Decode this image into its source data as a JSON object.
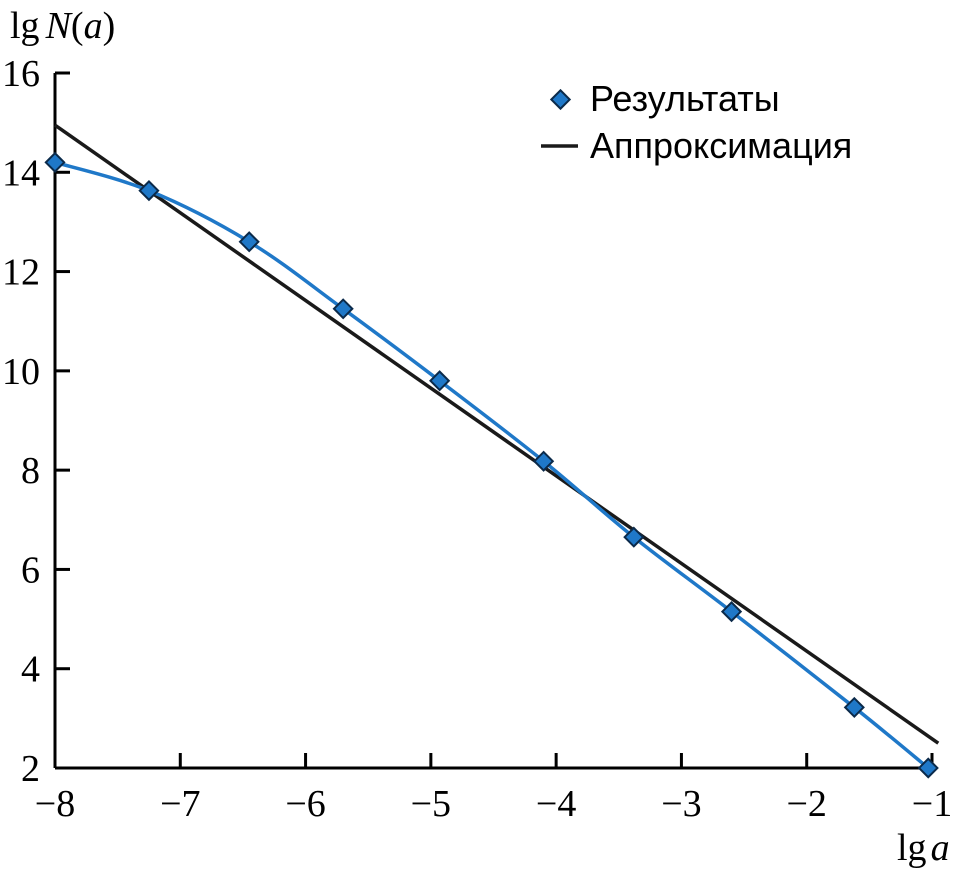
{
  "chart_data": {
    "type": "scatter",
    "title": "",
    "xlabel": "lg a",
    "ylabel": "lg N(a)",
    "xlim": [
      -8,
      -1
    ],
    "ylim": [
      2,
      16
    ],
    "x_ticks": [
      -8,
      -7,
      -6,
      -5,
      -4,
      -3,
      -2,
      -1
    ],
    "y_ticks": [
      2,
      4,
      6,
      8,
      10,
      12,
      14,
      16
    ],
    "x_tick_labels": [
      "−8",
      "−7",
      "−6",
      "−5",
      "−4",
      "−3",
      "−2",
      "−1"
    ],
    "y_tick_labels": [
      "2",
      "4",
      "6",
      "8",
      "10",
      "12",
      "14",
      "16"
    ],
    "grid": false,
    "legend_position": "top-right",
    "series": [
      {
        "name": "Результаты",
        "kind": "points-with-smooth-curve",
        "marker": "diamond",
        "color": "#1f77b4",
        "x": [
          -8.0,
          -7.25,
          -6.45,
          -5.7,
          -4.93,
          -4.1,
          -3.38,
          -2.6,
          -1.62,
          -1.03
        ],
        "y": [
          14.2,
          13.63,
          12.6,
          11.25,
          9.8,
          8.18,
          6.65,
          5.15,
          3.22,
          2.0
        ]
      },
      {
        "name": "Аппроксимация",
        "kind": "line",
        "color": "#1a1a1a",
        "x": [
          -8.0,
          -0.95
        ],
        "y": [
          14.95,
          2.5
        ]
      }
    ]
  }
}
